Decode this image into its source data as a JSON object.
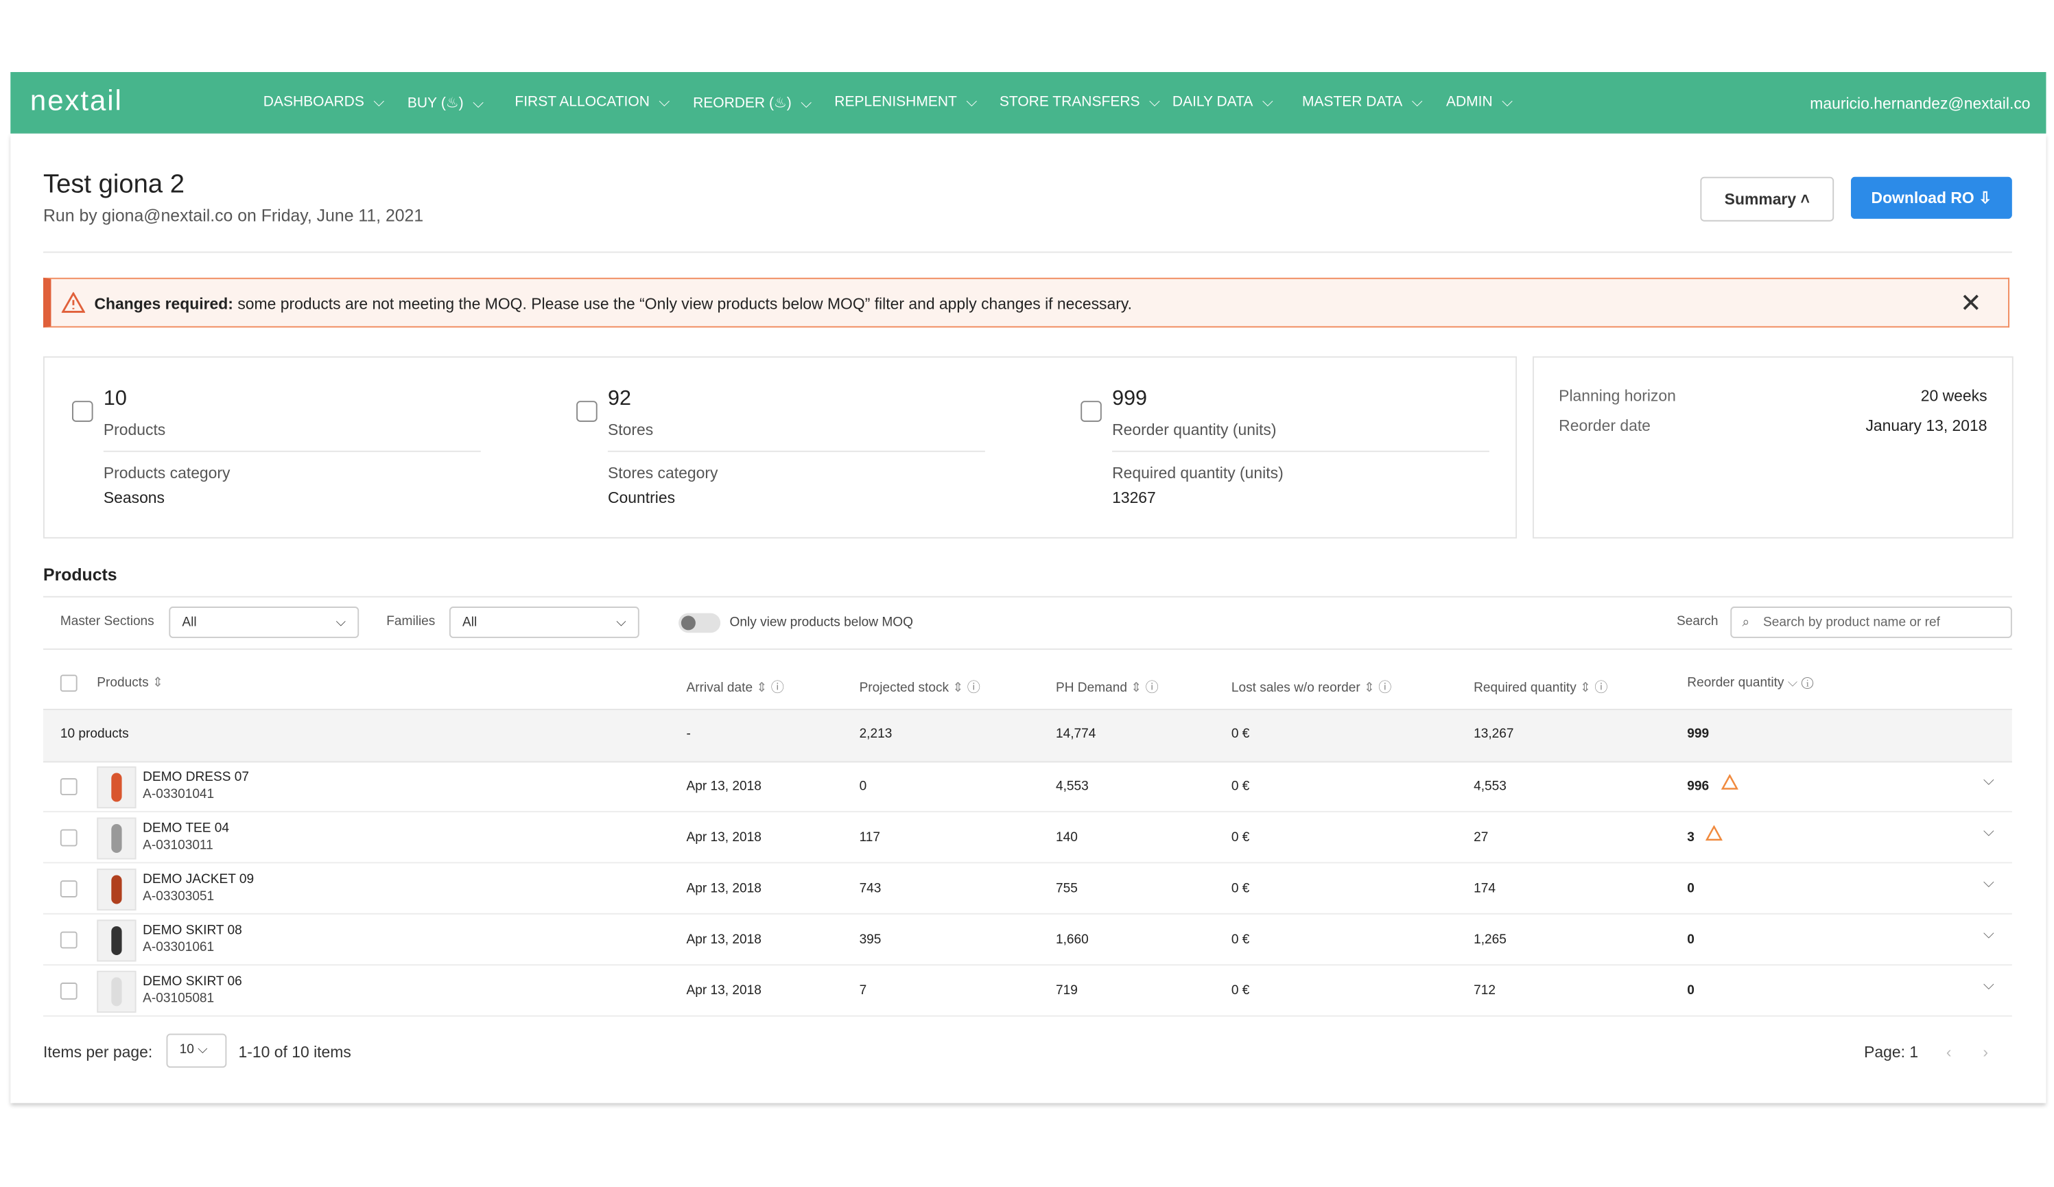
{
  "header": {
    "logo": "nextail",
    "nav": [
      "DASHBOARDS",
      "BUY",
      "FIRST ALLOCATION",
      "REORDER",
      "REPLENISHMENT",
      "STORE TRANSFERS",
      "DAILY DATA",
      "MASTER DATA",
      "ADMIN"
    ],
    "user": "mauricio.hernandez@nextail.co"
  },
  "page": {
    "title": "Test giona 2",
    "subtitle": "Run by giona@nextail.co on Friday, June 11, 2021",
    "summary_button": "Summary",
    "download_button": "Download RO"
  },
  "alert": {
    "strong": "Changes required:",
    "text": "some products are not meeting the MOQ. Please use the “Only view products below MOQ” filter and apply changes if necessary."
  },
  "summary": {
    "cards": [
      {
        "value": 10,
        "label": "Products",
        "sub_label": "Products category",
        "sub_value": "Seasons"
      },
      {
        "value": 92,
        "label": "Stores",
        "sub_label": "Stores category",
        "sub_value": "Countries"
      },
      {
        "value": 999,
        "label": "Reorder quantity (units)",
        "sub_label": "Required quantity (units)",
        "sub_value": 13267
      }
    ],
    "side": [
      {
        "label": "Planning horizon",
        "value": "20 weeks"
      },
      {
        "label": "Reorder date",
        "value": "January 13, 2018"
      }
    ]
  },
  "products": {
    "title": "Products",
    "filters": {
      "master_label": "Master Sections",
      "master_value": "All",
      "families_label": "Families",
      "families_value": "All",
      "toggle": "Only view products below MOQ",
      "search_label": "Search",
      "search_placeholder": "Search by product name or ref"
    },
    "columns": [
      "Products",
      "Arrival date",
      "Projected stock",
      "PH Demand",
      "Lost sales w/o reorder",
      "Required quantity",
      "Reorder quantity"
    ],
    "totals": [
      "10 products",
      "-",
      "2,213",
      "14,774",
      "0 €",
      "13,267",
      "999"
    ],
    "rows": [
      {
        "name": "DEMO DRESS 07",
        "ref": "A-03301041",
        "cells": [
          "Apr 13, 2018",
          "0",
          "4,553",
          "0 €",
          "4,553",
          "996"
        ],
        "warning": true
      },
      {
        "name": "DEMO TEE 04",
        "ref": "A-03103011",
        "cells": [
          "Apr 13, 2018",
          "117",
          "140",
          "0 €",
          "27",
          "3"
        ],
        "warning": true
      },
      {
        "name": "DEMO JACKET 09",
        "ref": "A-03303051",
        "cells": [
          "Apr 13, 2018",
          "743",
          "755",
          "0 €",
          "174",
          "0"
        ],
        "warning": false
      },
      {
        "name": "DEMO SKIRT 08",
        "ref": "A-03301061",
        "cells": [
          "Apr 13, 2018",
          "395",
          "1,660",
          "0 €",
          "1,265",
          "0"
        ],
        "warning": false
      },
      {
        "name": "DEMO SKIRT 06",
        "ref": "A-03105081",
        "cells": [
          "Apr 13, 2018",
          "7",
          "719",
          "0 €",
          "712",
          "0"
        ],
        "warning": false
      }
    ]
  },
  "footer": {
    "items_label": "Items per page:",
    "items_value": "10",
    "range": "1-10 of 10 items",
    "page_label": "Page:",
    "page_value": "1"
  }
}
